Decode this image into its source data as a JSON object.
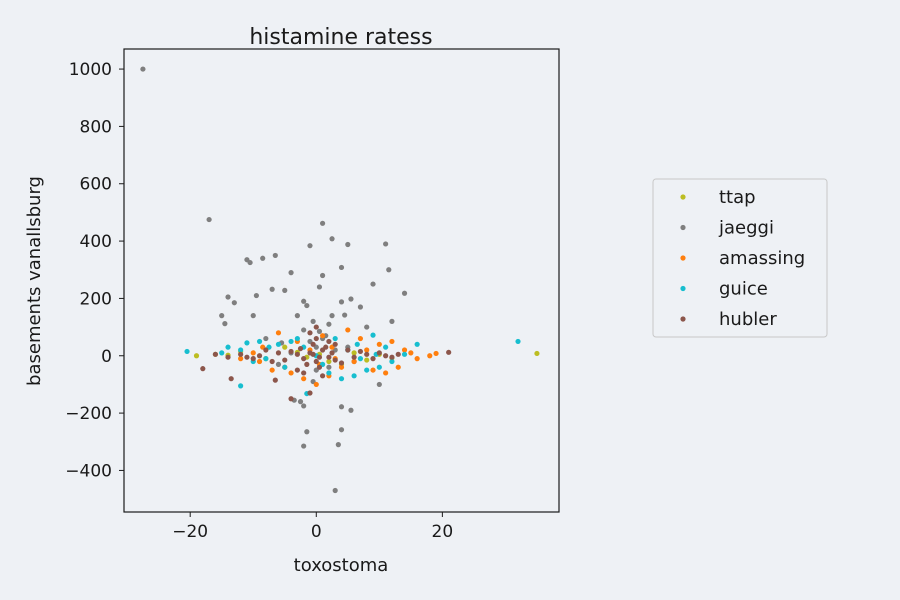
{
  "chart_data": {
    "type": "scatter",
    "title": "histamine ratess",
    "xlabel": "toxostoma",
    "ylabel": "basements vanallsburg",
    "xlim": [
      -30.5,
      38.5
    ],
    "ylim": [
      -545,
      1070
    ],
    "xticks": [
      -20,
      0,
      20
    ],
    "yticks": [
      -400,
      -200,
      0,
      200,
      400,
      600,
      800,
      1000
    ],
    "grid": false,
    "legend_position": "right",
    "series": [
      {
        "name": "ttap",
        "color": "#bcbd22",
        "points": [
          [
            35.0,
            8
          ],
          [
            -16.0,
            5
          ],
          [
            -19.0,
            0
          ],
          [
            -3.0,
            12
          ],
          [
            2.0,
            -20
          ],
          [
            6.0,
            10
          ],
          [
            -8.0,
            -10
          ],
          [
            10.0,
            5
          ],
          [
            -12.0,
            15
          ],
          [
            4.0,
            -30
          ],
          [
            -5.0,
            30
          ],
          [
            8.0,
            -15
          ],
          [
            0.5,
            5
          ],
          [
            -1.5,
            -5
          ],
          [
            12.0,
            -8
          ],
          [
            -14.0,
            2
          ]
        ]
      },
      {
        "name": "jaeggi",
        "color": "#7f7f7f",
        "points": [
          [
            -27.5,
            1000
          ],
          [
            -17.0,
            475
          ],
          [
            1.0,
            462
          ],
          [
            2.5,
            408
          ],
          [
            11.0,
            390
          ],
          [
            5.0,
            388
          ],
          [
            -1.0,
            384
          ],
          [
            -6.5,
            350
          ],
          [
            -8.5,
            340
          ],
          [
            -11.0,
            335
          ],
          [
            -10.5,
            325
          ],
          [
            4.0,
            308
          ],
          [
            11.5,
            300
          ],
          [
            -4.0,
            290
          ],
          [
            1.0,
            280
          ],
          [
            0.5,
            240
          ],
          [
            9.0,
            250
          ],
          [
            -7.0,
            232
          ],
          [
            -5.0,
            228
          ],
          [
            -9.5,
            210
          ],
          [
            14.0,
            218
          ],
          [
            -14.0,
            205
          ],
          [
            -13.0,
            185
          ],
          [
            -2.0,
            190
          ],
          [
            -1.5,
            175
          ],
          [
            4.0,
            188
          ],
          [
            5.5,
            198
          ],
          [
            7.0,
            170
          ],
          [
            -10.0,
            140
          ],
          [
            -3.0,
            140
          ],
          [
            4.5,
            142
          ],
          [
            -15.0,
            140
          ],
          [
            -14.5,
            112
          ],
          [
            -0.5,
            120
          ],
          [
            2.0,
            110
          ],
          [
            8.0,
            100
          ],
          [
            12.0,
            120
          ],
          [
            -2.0,
            90
          ],
          [
            0.5,
            85
          ],
          [
            1.0,
            60
          ],
          [
            -5.5,
            45
          ],
          [
            0.0,
            30
          ],
          [
            3.0,
            20
          ],
          [
            -3.5,
            -155
          ],
          [
            -2.5,
            -160
          ],
          [
            -2.0,
            -175
          ],
          [
            4.0,
            -178
          ],
          [
            5.5,
            -190
          ],
          [
            -1.5,
            -265
          ],
          [
            4.0,
            -258
          ],
          [
            -2.0,
            -315
          ],
          [
            3.5,
            -310
          ],
          [
            3.0,
            -470
          ],
          [
            -1.0,
            50
          ],
          [
            2.0,
            -40
          ],
          [
            -4.0,
            10
          ],
          [
            6.0,
            -20
          ],
          [
            10.0,
            -100
          ],
          [
            -8.0,
            60
          ],
          [
            1.5,
            70
          ],
          [
            -0.5,
            -90
          ],
          [
            5.0,
            30
          ],
          [
            -6.0,
            -30
          ],
          [
            2.5,
            140
          ],
          [
            0.0,
            -50
          ]
        ]
      },
      {
        "name": "amassing",
        "color": "#ff7f0e",
        "points": [
          [
            -8.5,
            30
          ],
          [
            -9.0,
            -20
          ],
          [
            -7.0,
            -50
          ],
          [
            -4.0,
            -60
          ],
          [
            -2.0,
            -80
          ],
          [
            0.0,
            -100
          ],
          [
            2.0,
            -70
          ],
          [
            4.0,
            -40
          ],
          [
            6.0,
            -20
          ],
          [
            8.0,
            20
          ],
          [
            10.0,
            40
          ],
          [
            12.0,
            50
          ],
          [
            13.0,
            -40
          ],
          [
            15.0,
            10
          ],
          [
            16.0,
            -10
          ],
          [
            18.0,
            0
          ],
          [
            19.0,
            8
          ],
          [
            -3.0,
            50
          ],
          [
            1.0,
            70
          ],
          [
            5.0,
            90
          ],
          [
            7.0,
            60
          ],
          [
            -6.0,
            80
          ],
          [
            -10.0,
            10
          ],
          [
            -12.0,
            -10
          ],
          [
            3.0,
            -10
          ],
          [
            -1.0,
            20
          ],
          [
            9.0,
            -50
          ],
          [
            11.0,
            -60
          ],
          [
            14.0,
            20
          ],
          [
            0.5,
            -30
          ],
          [
            -5.0,
            -40
          ],
          [
            2.5,
            30
          ]
        ]
      },
      {
        "name": "guice",
        "color": "#17becf",
        "points": [
          [
            -20.5,
            15
          ],
          [
            32.0,
            50
          ],
          [
            -12.0,
            -105
          ],
          [
            -1.5,
            -132
          ],
          [
            9.0,
            72
          ],
          [
            11.0,
            30
          ],
          [
            16.0,
            40
          ],
          [
            14.0,
            5
          ],
          [
            12.0,
            -20
          ],
          [
            10.0,
            -40
          ],
          [
            8.0,
            -50
          ],
          [
            6.0,
            -70
          ],
          [
            4.0,
            -80
          ],
          [
            2.0,
            -60
          ],
          [
            0.0,
            0
          ],
          [
            -2.0,
            30
          ],
          [
            -4.0,
            50
          ],
          [
            -6.0,
            40
          ],
          [
            -8.0,
            -10
          ],
          [
            -10.0,
            -20
          ],
          [
            -12.0,
            20
          ],
          [
            -14.0,
            30
          ],
          [
            -15.0,
            10
          ],
          [
            -9.0,
            50
          ],
          [
            5.0,
            20
          ],
          [
            7.0,
            -10
          ],
          [
            3.0,
            60
          ],
          [
            1.0,
            -30
          ],
          [
            -3.0,
            60
          ],
          [
            -5.0,
            -40
          ],
          [
            9.5,
            5
          ],
          [
            -7.5,
            30
          ],
          [
            6.5,
            40
          ],
          [
            -11.0,
            45
          ]
        ]
      },
      {
        "name": "hubler",
        "color": "#8c564b",
        "points": [
          [
            -18.0,
            -45
          ],
          [
            -13.5,
            -80
          ],
          [
            -11.0,
            -5
          ],
          [
            -6.5,
            -85
          ],
          [
            -4.0,
            -150
          ],
          [
            -1.0,
            -130
          ],
          [
            21.0,
            12
          ],
          [
            -2.0,
            -10
          ],
          [
            -1.0,
            10
          ],
          [
            0.0,
            -20
          ],
          [
            1.0,
            20
          ],
          [
            2.0,
            -5
          ],
          [
            -3.0,
            5
          ],
          [
            3.0,
            -15
          ],
          [
            -0.5,
            40
          ],
          [
            0.5,
            -40
          ],
          [
            1.5,
            30
          ],
          [
            -1.5,
            -30
          ],
          [
            2.5,
            10
          ],
          [
            -2.5,
            25
          ],
          [
            4.0,
            -25
          ],
          [
            -4.0,
            15
          ],
          [
            5.0,
            20
          ],
          [
            -5.0,
            -15
          ],
          [
            6.0,
            -5
          ],
          [
            -6.0,
            10
          ],
          [
            7.0,
            15
          ],
          [
            -7.0,
            -20
          ],
          [
            8.0,
            5
          ],
          [
            -8.0,
            20
          ],
          [
            9.0,
            -10
          ],
          [
            -9.0,
            0
          ],
          [
            10.0,
            10
          ],
          [
            -10.0,
            -10
          ],
          [
            11.0,
            0
          ],
          [
            12.0,
            -5
          ],
          [
            13.0,
            5
          ],
          [
            -12.0,
            5
          ],
          [
            -14.0,
            -5
          ],
          [
            -16.0,
            5
          ],
          [
            0.0,
            60
          ],
          [
            1.0,
            -70
          ],
          [
            -1.0,
            80
          ],
          [
            2.0,
            50
          ],
          [
            -2.0,
            -60
          ],
          [
            3.0,
            40
          ],
          [
            -3.0,
            -50
          ],
          [
            0.0,
            100
          ],
          [
            0.5,
            -5
          ],
          [
            -0.5,
            5
          ]
        ]
      }
    ]
  }
}
